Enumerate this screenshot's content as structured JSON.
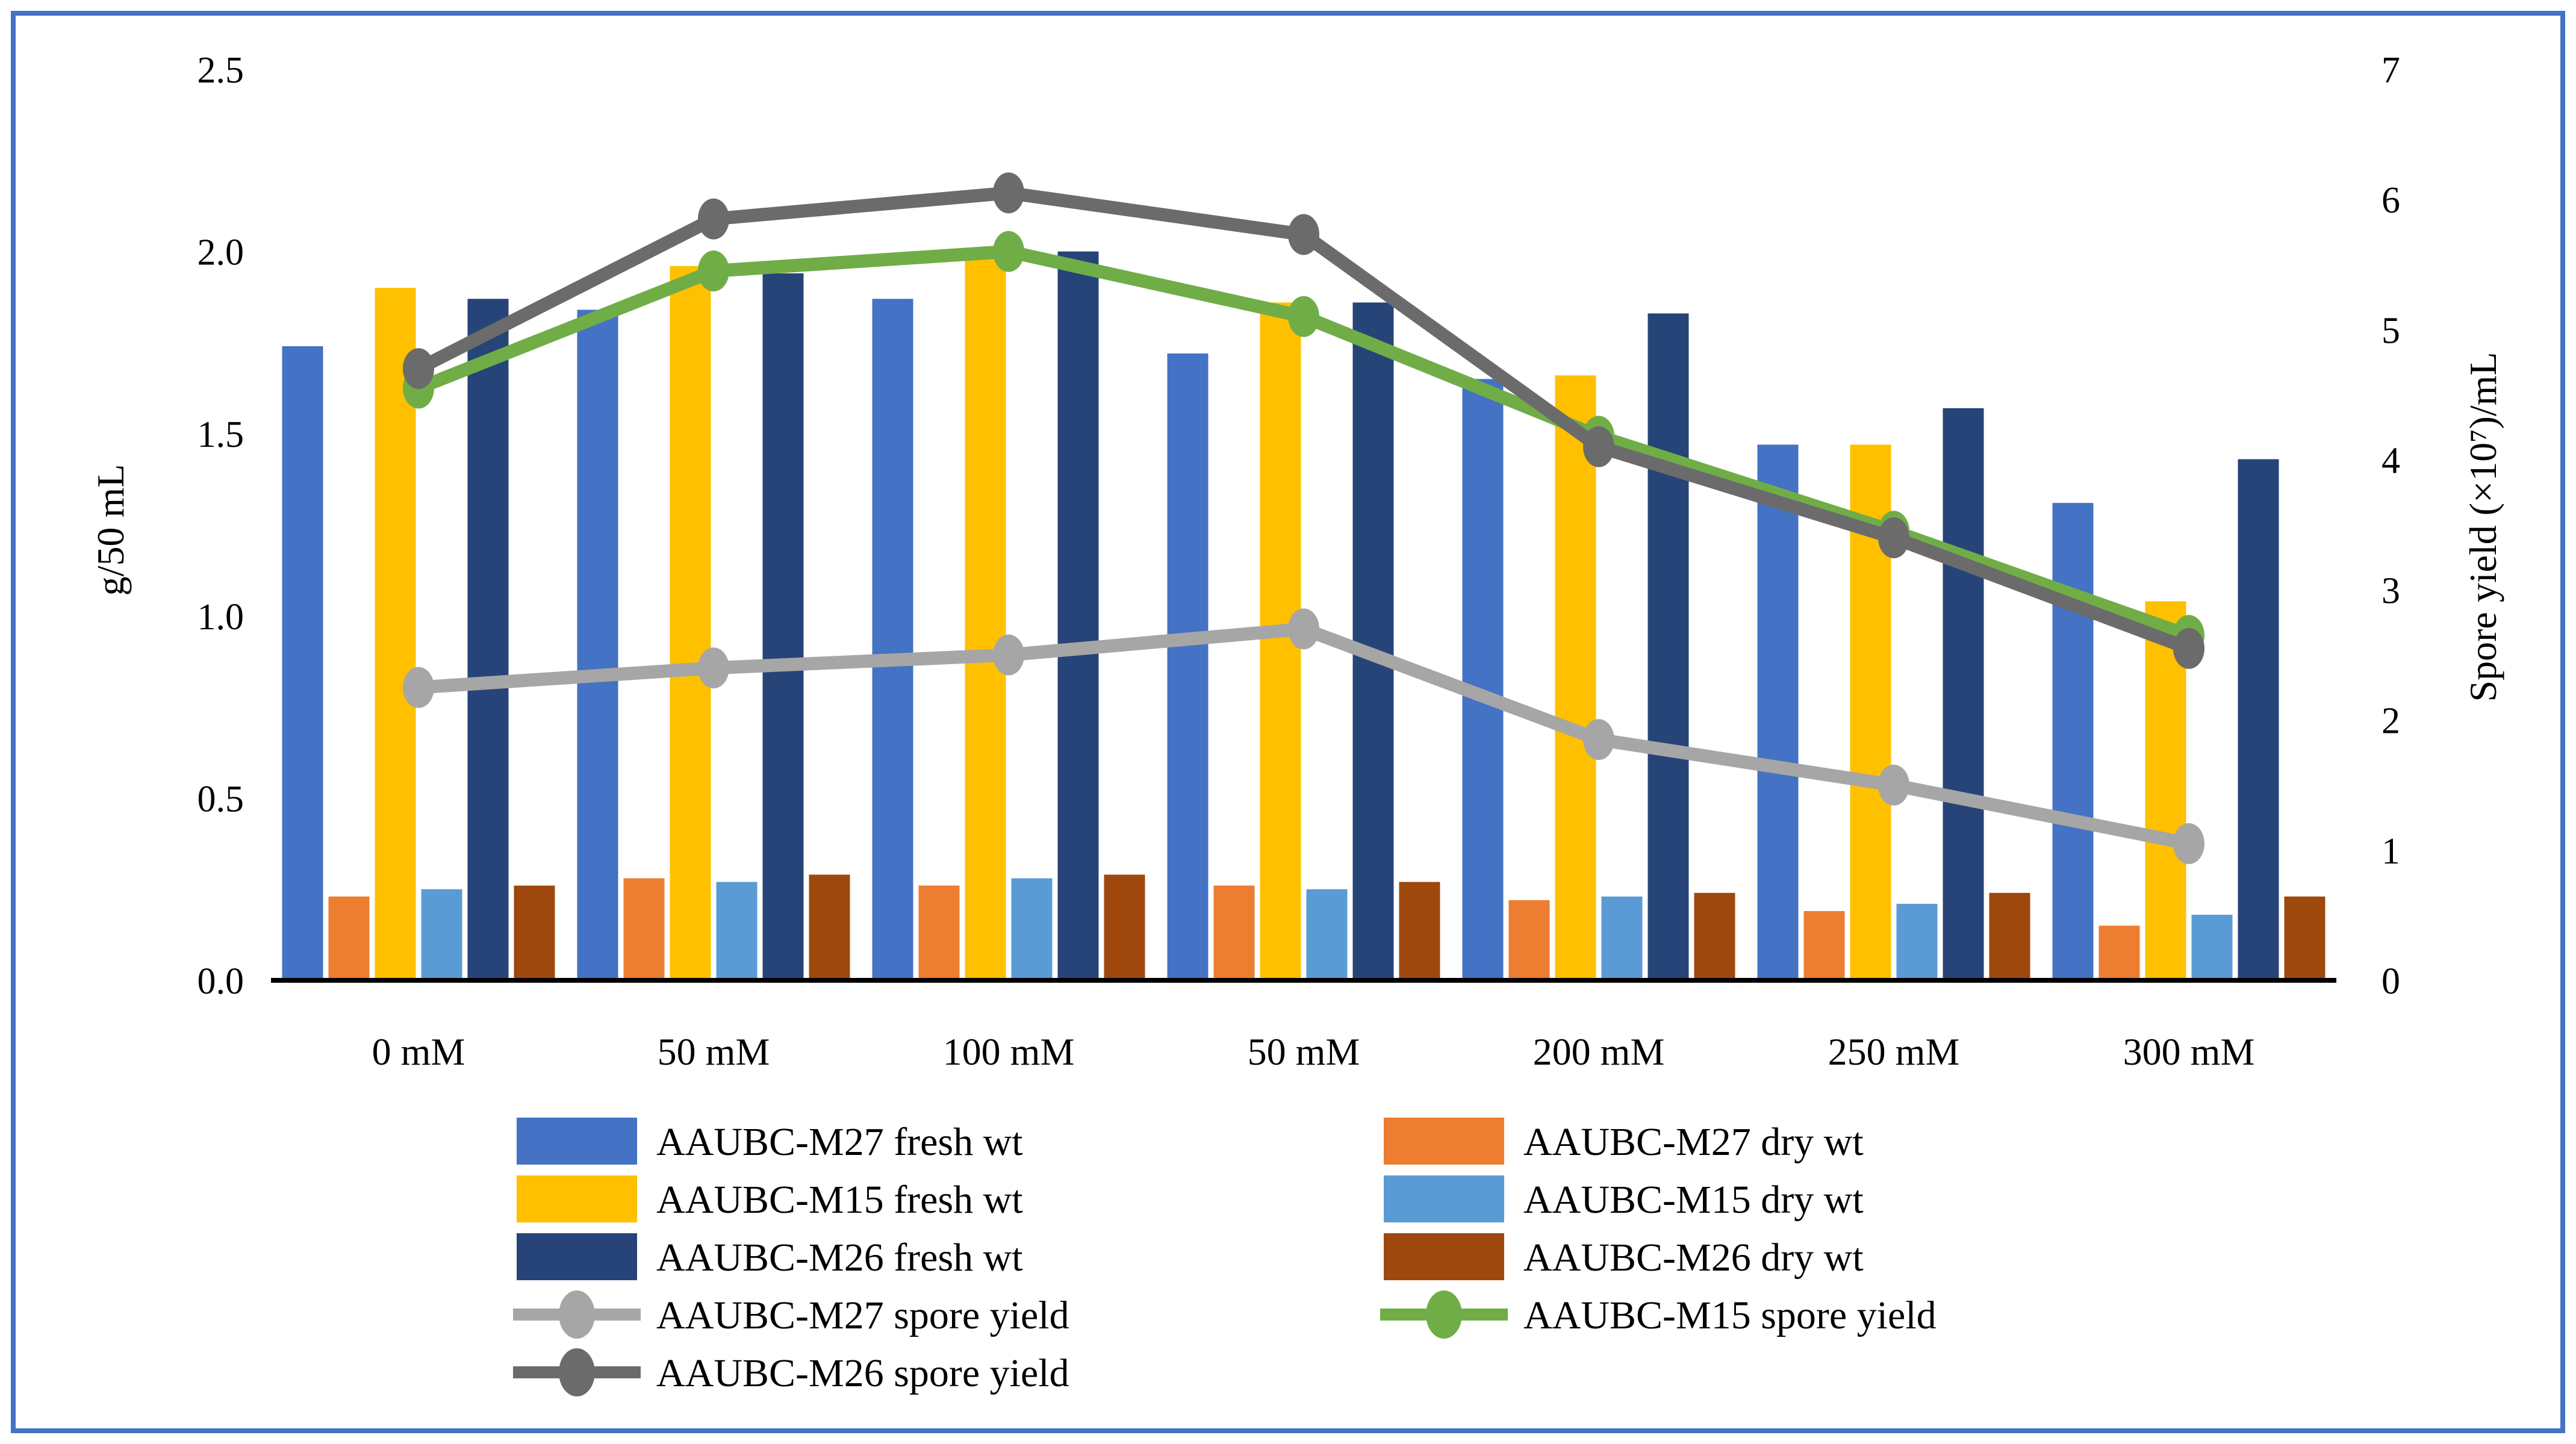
{
  "figure": {
    "background": "#ffffff",
    "border_color": "#4472C4"
  },
  "chart_data": {
    "type": "bar-line-combo",
    "categories": [
      "0 mM",
      "50 mM",
      "100 mM",
      "50 mM",
      "200 mM",
      "250 mM",
      "300 mM"
    ],
    "left_axis": {
      "label": "g/50 mL",
      "min": 0,
      "max": 2.5,
      "step": 0.5,
      "tick_labels": [
        "0.0",
        "0.5",
        "1.0",
        "1.5",
        "2.0",
        "2.5"
      ]
    },
    "right_axis": {
      "label": "Spore yield (×10⁷)/mL",
      "min": 0,
      "max": 7,
      "step": 1,
      "tick_labels": [
        "0",
        "1",
        "2",
        "3",
        "4",
        "5",
        "6",
        "7"
      ]
    },
    "bar_series": [
      {
        "name": "AAUBC-M27 fresh wt",
        "color": "#4472C4",
        "values": [
          1.74,
          1.84,
          1.87,
          1.72,
          1.65,
          1.47,
          1.31
        ]
      },
      {
        "name": "AAUBC-M27 dry wt",
        "color": "#ED7D31",
        "values": [
          0.23,
          0.28,
          0.26,
          0.26,
          0.22,
          0.19,
          0.15
        ]
      },
      {
        "name": "AAUBC-M15 fresh wt",
        "color": "#FFC000",
        "values": [
          1.9,
          1.96,
          2.01,
          1.86,
          1.66,
          1.47,
          1.04
        ]
      },
      {
        "name": "AAUBC-M15 dry wt",
        "color": "#5B9BD5",
        "values": [
          0.25,
          0.27,
          0.28,
          0.25,
          0.23,
          0.21,
          0.18
        ]
      },
      {
        "name": "AAUBC-M26 fresh wt",
        "color": "#264478",
        "values": [
          1.87,
          1.94,
          2.0,
          1.86,
          1.83,
          1.57,
          1.43
        ]
      },
      {
        "name": "AAUBC-M26 dry wt",
        "color": "#9E480E",
        "values": [
          0.26,
          0.29,
          0.29,
          0.27,
          0.24,
          0.24,
          0.23
        ]
      }
    ],
    "line_series": [
      {
        "name": "AAUBC-M27 spore yield",
        "color": "#A6A6A6",
        "values": [
          2.25,
          2.4,
          2.5,
          2.7,
          1.85,
          1.5,
          1.05
        ]
      },
      {
        "name": "AAUBC-M15 spore yield",
        "color": "#70AD47",
        "values": [
          4.55,
          5.45,
          5.6,
          5.1,
          4.18,
          3.45,
          2.65
        ]
      },
      {
        "name": "AAUBC-M26 spore yield",
        "color": "#6B6B6B",
        "values": [
          4.7,
          5.85,
          6.05,
          5.73,
          4.1,
          3.4,
          2.55
        ]
      }
    ],
    "legend": {
      "columns": [
        [
          "AAUBC-M27 fresh wt",
          "AAUBC-M15 fresh wt",
          "AAUBC-M26 fresh wt",
          "AAUBC-M27 spore yield",
          "AAUBC-M26 spore yield"
        ],
        [
          "AAUBC-M27 dry wt",
          "AAUBC-M15 dry wt",
          "AAUBC-M26 dry wt",
          "AAUBC-M15 spore yield"
        ]
      ]
    }
  }
}
